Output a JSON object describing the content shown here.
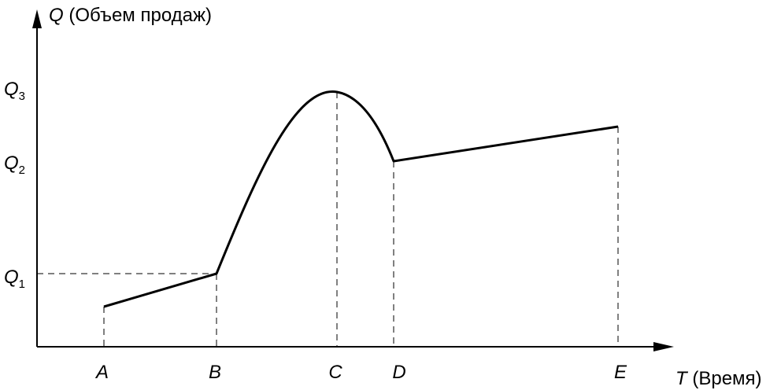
{
  "y_axis": {
    "symbol": "Q",
    "label": "(Объем продаж)"
  },
  "x_axis": {
    "symbol": "T",
    "label": "(Время)"
  },
  "x_points": [
    "A",
    "B",
    "C",
    "D",
    "E"
  ],
  "y_levels": [
    {
      "symbol": "Q",
      "subscript": "1"
    },
    {
      "symbol": "Q",
      "subscript": "2"
    },
    {
      "symbol": "Q",
      "subscript": "3"
    }
  ]
}
